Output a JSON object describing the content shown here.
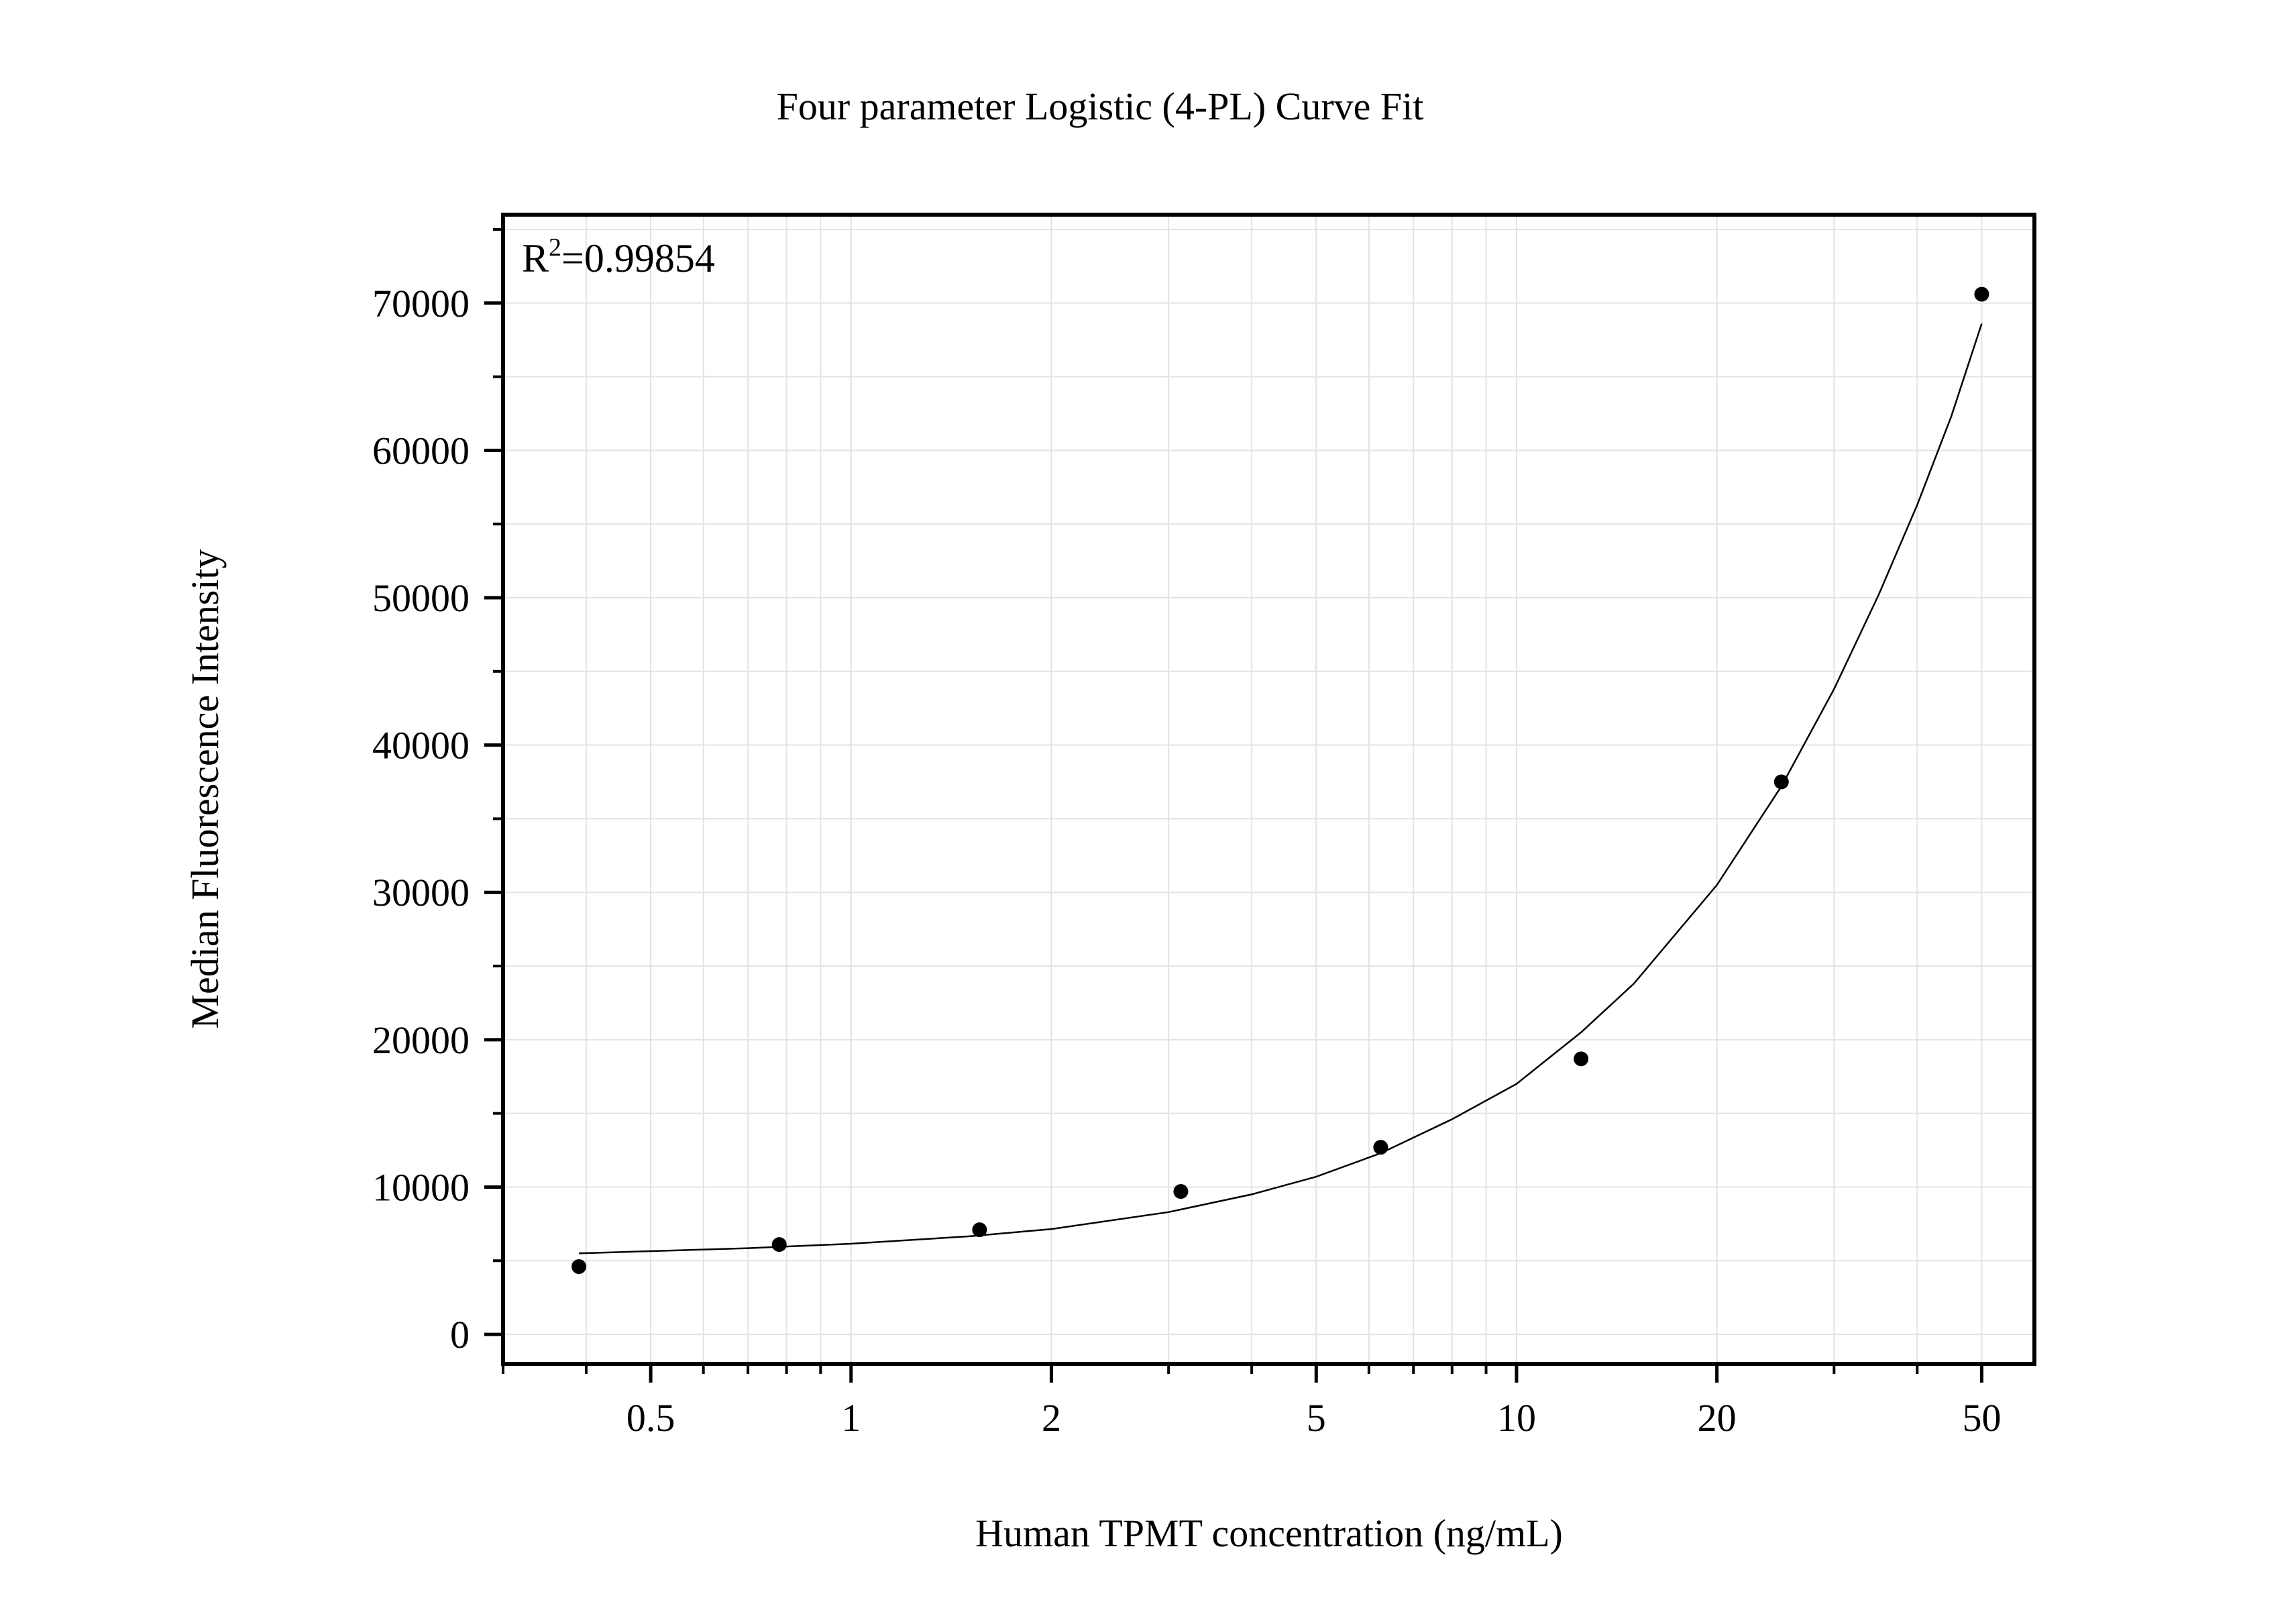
{
  "chart_data": {
    "type": "scatter",
    "title": "Four parameter Logistic (4-PL) Curve Fit",
    "xlabel": "Human TPMT concentration (ng/mL)",
    "ylabel": "Median Fluorescence Intensity",
    "annotation": {
      "r_label": "R",
      "r_sup": "2",
      "r_value": "=0.99854"
    },
    "x_scale": "log",
    "xlim": [
      0.3,
      60
    ],
    "ylim": [
      -2000,
      76000
    ],
    "x_ticks": [
      {
        "value": 0.5,
        "label": "0.5"
      },
      {
        "value": 1,
        "label": "1"
      },
      {
        "value": 2,
        "label": "2"
      },
      {
        "value": 5,
        "label": "5"
      },
      {
        "value": 10,
        "label": "10"
      },
      {
        "value": 20,
        "label": "20"
      },
      {
        "value": 50,
        "label": "50"
      }
    ],
    "y_ticks": [
      {
        "value": 0,
        "label": "0"
      },
      {
        "value": 10000,
        "label": "10000"
      },
      {
        "value": 20000,
        "label": "20000"
      },
      {
        "value": 30000,
        "label": "30000"
      },
      {
        "value": 40000,
        "label": "40000"
      },
      {
        "value": 50000,
        "label": "50000"
      },
      {
        "value": 60000,
        "label": "60000"
      },
      {
        "value": 70000,
        "label": "70000"
      }
    ],
    "grid": true,
    "series": [
      {
        "x": [
          0.39,
          0.78,
          1.56,
          3.13,
          6.25,
          12.5,
          25,
          50
        ],
        "y": [
          4600,
          6100,
          7100,
          9700,
          12700,
          18700,
          37500,
          70600
        ]
      }
    ],
    "fit": {
      "model": "4PL",
      "curve": [
        [
          0.39,
          5500
        ],
        [
          0.5,
          5650
        ],
        [
          0.7,
          5850
        ],
        [
          1,
          6150
        ],
        [
          1.5,
          6650
        ],
        [
          2,
          7150
        ],
        [
          3,
          8300
        ],
        [
          4,
          9500
        ],
        [
          5,
          10700
        ],
        [
          6.25,
          12300
        ],
        [
          8,
          14600
        ],
        [
          10,
          17000
        ],
        [
          12.5,
          20500
        ],
        [
          15,
          23800
        ],
        [
          20,
          30500
        ],
        [
          25,
          37200
        ],
        [
          30,
          43800
        ],
        [
          35,
          50200
        ],
        [
          40,
          56300
        ],
        [
          45,
          62300
        ],
        [
          50,
          68600
        ]
      ]
    },
    "colors": {
      "points": "#000000",
      "line": "#000000",
      "grid": "#e3e3e3",
      "axis": "#000000"
    }
  }
}
